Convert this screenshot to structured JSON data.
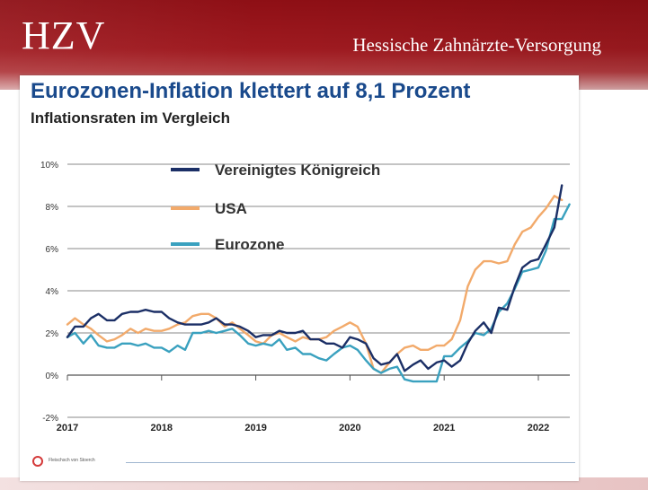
{
  "header": {
    "logo_text": "HZV",
    "organization": "Hessische Zahnärzte-Versorgung"
  },
  "footer": {
    "source": "Fleischsch von Stoerch"
  },
  "colors": {
    "banner": "#9f1a20",
    "uk": "#1b2f66",
    "usa": "#f2aa6b",
    "eurozone": "#3aa1bf",
    "title": "#1a4a8c"
  },
  "chart_data": {
    "type": "line",
    "title": "Eurozonen-Inflation klettert auf 8,1 Prozent",
    "subtitle": "Inflationsraten im Vergleich",
    "xlabel": "",
    "ylabel": "",
    "x_ticks": [
      "2017",
      "2018",
      "2019",
      "2020",
      "2021",
      "2022"
    ],
    "x_range": [
      2017.0,
      2022.33
    ],
    "y_ticks": [
      "10%",
      "8%",
      "6%",
      "4%",
      "2%",
      "0%",
      "-2%"
    ],
    "y_tick_values": [
      10,
      8,
      6,
      4,
      2,
      0,
      -2
    ],
    "ylim": [
      -2,
      10
    ],
    "grid": true,
    "legend_position": "top-left",
    "series": [
      {
        "name": "Vereinigtes Königreich",
        "color": "#1b2f66",
        "points": [
          [
            2017.0,
            1.8
          ],
          [
            2017.08,
            2.3
          ],
          [
            2017.17,
            2.3
          ],
          [
            2017.25,
            2.7
          ],
          [
            2017.33,
            2.9
          ],
          [
            2017.42,
            2.6
          ],
          [
            2017.5,
            2.6
          ],
          [
            2017.58,
            2.9
          ],
          [
            2017.67,
            3.0
          ],
          [
            2017.75,
            3.0
          ],
          [
            2017.83,
            3.1
          ],
          [
            2017.92,
            3.0
          ],
          [
            2018.0,
            3.0
          ],
          [
            2018.08,
            2.7
          ],
          [
            2018.17,
            2.5
          ],
          [
            2018.25,
            2.4
          ],
          [
            2018.33,
            2.4
          ],
          [
            2018.42,
            2.4
          ],
          [
            2018.5,
            2.5
          ],
          [
            2018.58,
            2.7
          ],
          [
            2018.67,
            2.4
          ],
          [
            2018.75,
            2.4
          ],
          [
            2018.83,
            2.3
          ],
          [
            2018.92,
            2.1
          ],
          [
            2019.0,
            1.8
          ],
          [
            2019.08,
            1.9
          ],
          [
            2019.17,
            1.9
          ],
          [
            2019.25,
            2.1
          ],
          [
            2019.33,
            2.0
          ],
          [
            2019.42,
            2.0
          ],
          [
            2019.5,
            2.1
          ],
          [
            2019.58,
            1.7
          ],
          [
            2019.67,
            1.7
          ],
          [
            2019.75,
            1.5
          ],
          [
            2019.83,
            1.5
          ],
          [
            2019.92,
            1.3
          ],
          [
            2020.0,
            1.8
          ],
          [
            2020.08,
            1.7
          ],
          [
            2020.17,
            1.5
          ],
          [
            2020.25,
            0.8
          ],
          [
            2020.33,
            0.5
          ],
          [
            2020.42,
            0.6
          ],
          [
            2020.5,
            1.0
          ],
          [
            2020.58,
            0.2
          ],
          [
            2020.67,
            0.5
          ],
          [
            2020.75,
            0.7
          ],
          [
            2020.83,
            0.3
          ],
          [
            2020.92,
            0.6
          ],
          [
            2021.0,
            0.7
          ],
          [
            2021.08,
            0.4
          ],
          [
            2021.17,
            0.7
          ],
          [
            2021.25,
            1.5
          ],
          [
            2021.33,
            2.1
          ],
          [
            2021.42,
            2.5
          ],
          [
            2021.5,
            2.0
          ],
          [
            2021.58,
            3.2
          ],
          [
            2021.67,
            3.1
          ],
          [
            2021.75,
            4.2
          ],
          [
            2021.83,
            5.1
          ],
          [
            2021.92,
            5.4
          ],
          [
            2022.0,
            5.5
          ],
          [
            2022.08,
            6.2
          ],
          [
            2022.17,
            7.0
          ],
          [
            2022.25,
            9.0
          ]
        ]
      },
      {
        "name": "USA",
        "color": "#f2aa6b",
        "points": [
          [
            2017.0,
            2.4
          ],
          [
            2017.08,
            2.7
          ],
          [
            2017.17,
            2.4
          ],
          [
            2017.25,
            2.2
          ],
          [
            2017.33,
            1.9
          ],
          [
            2017.42,
            1.6
          ],
          [
            2017.5,
            1.7
          ],
          [
            2017.58,
            1.9
          ],
          [
            2017.67,
            2.2
          ],
          [
            2017.75,
            2.0
          ],
          [
            2017.83,
            2.2
          ],
          [
            2017.92,
            2.1
          ],
          [
            2018.0,
            2.1
          ],
          [
            2018.08,
            2.2
          ],
          [
            2018.17,
            2.4
          ],
          [
            2018.25,
            2.5
          ],
          [
            2018.33,
            2.8
          ],
          [
            2018.42,
            2.9
          ],
          [
            2018.5,
            2.9
          ],
          [
            2018.58,
            2.7
          ],
          [
            2018.67,
            2.3
          ],
          [
            2018.75,
            2.5
          ],
          [
            2018.83,
            2.2
          ],
          [
            2018.92,
            1.9
          ],
          [
            2019.0,
            1.6
          ],
          [
            2019.08,
            1.5
          ],
          [
            2019.17,
            1.9
          ],
          [
            2019.25,
            2.0
          ],
          [
            2019.33,
            1.8
          ],
          [
            2019.42,
            1.6
          ],
          [
            2019.5,
            1.8
          ],
          [
            2019.58,
            1.7
          ],
          [
            2019.67,
            1.7
          ],
          [
            2019.75,
            1.8
          ],
          [
            2019.83,
            2.1
          ],
          [
            2019.92,
            2.3
          ],
          [
            2020.0,
            2.5
          ],
          [
            2020.08,
            2.3
          ],
          [
            2020.17,
            1.5
          ],
          [
            2020.25,
            0.3
          ],
          [
            2020.33,
            0.1
          ],
          [
            2020.42,
            0.6
          ],
          [
            2020.5,
            1.0
          ],
          [
            2020.58,
            1.3
          ],
          [
            2020.67,
            1.4
          ],
          [
            2020.75,
            1.2
          ],
          [
            2020.83,
            1.2
          ],
          [
            2020.92,
            1.4
          ],
          [
            2021.0,
            1.4
          ],
          [
            2021.08,
            1.7
          ],
          [
            2021.17,
            2.6
          ],
          [
            2021.25,
            4.2
          ],
          [
            2021.33,
            5.0
          ],
          [
            2021.42,
            5.4
          ],
          [
            2021.5,
            5.4
          ],
          [
            2021.58,
            5.3
          ],
          [
            2021.67,
            5.4
          ],
          [
            2021.75,
            6.2
          ],
          [
            2021.83,
            6.8
          ],
          [
            2021.92,
            7.0
          ],
          [
            2022.0,
            7.5
          ],
          [
            2022.08,
            7.9
          ],
          [
            2022.17,
            8.5
          ],
          [
            2022.25,
            8.3
          ]
        ]
      },
      {
        "name": "Eurozone",
        "color": "#3aa1bf",
        "points": [
          [
            2017.0,
            1.8
          ],
          [
            2017.08,
            2.0
          ],
          [
            2017.17,
            1.5
          ],
          [
            2017.25,
            1.9
          ],
          [
            2017.33,
            1.4
          ],
          [
            2017.42,
            1.3
          ],
          [
            2017.5,
            1.3
          ],
          [
            2017.58,
            1.5
          ],
          [
            2017.67,
            1.5
          ],
          [
            2017.75,
            1.4
          ],
          [
            2017.83,
            1.5
          ],
          [
            2017.92,
            1.3
          ],
          [
            2018.0,
            1.3
          ],
          [
            2018.08,
            1.1
          ],
          [
            2018.17,
            1.4
          ],
          [
            2018.25,
            1.2
          ],
          [
            2018.33,
            2.0
          ],
          [
            2018.42,
            2.0
          ],
          [
            2018.5,
            2.1
          ],
          [
            2018.58,
            2.0
          ],
          [
            2018.67,
            2.1
          ],
          [
            2018.75,
            2.2
          ],
          [
            2018.83,
            1.9
          ],
          [
            2018.92,
            1.5
          ],
          [
            2019.0,
            1.4
          ],
          [
            2019.08,
            1.5
          ],
          [
            2019.17,
            1.4
          ],
          [
            2019.25,
            1.7
          ],
          [
            2019.33,
            1.2
          ],
          [
            2019.42,
            1.3
          ],
          [
            2019.5,
            1.0
          ],
          [
            2019.58,
            1.0
          ],
          [
            2019.67,
            0.8
          ],
          [
            2019.75,
            0.7
          ],
          [
            2019.83,
            1.0
          ],
          [
            2019.92,
            1.3
          ],
          [
            2020.0,
            1.4
          ],
          [
            2020.08,
            1.2
          ],
          [
            2020.17,
            0.7
          ],
          [
            2020.25,
            0.3
          ],
          [
            2020.33,
            0.1
          ],
          [
            2020.42,
            0.3
          ],
          [
            2020.5,
            0.4
          ],
          [
            2020.58,
            -0.2
          ],
          [
            2020.67,
            -0.3
          ],
          [
            2020.75,
            -0.3
          ],
          [
            2020.83,
            -0.3
          ],
          [
            2020.92,
            -0.3
          ],
          [
            2021.0,
            0.9
          ],
          [
            2021.08,
            0.9
          ],
          [
            2021.17,
            1.3
          ],
          [
            2021.25,
            1.6
          ],
          [
            2021.33,
            2.0
          ],
          [
            2021.42,
            1.9
          ],
          [
            2021.5,
            2.2
          ],
          [
            2021.58,
            3.0
          ],
          [
            2021.67,
            3.4
          ],
          [
            2021.75,
            4.1
          ],
          [
            2021.83,
            4.9
          ],
          [
            2021.92,
            5.0
          ],
          [
            2022.0,
            5.1
          ],
          [
            2022.08,
            5.9
          ],
          [
            2022.17,
            7.4
          ],
          [
            2022.25,
            7.4
          ],
          [
            2022.33,
            8.1
          ]
        ]
      }
    ]
  }
}
